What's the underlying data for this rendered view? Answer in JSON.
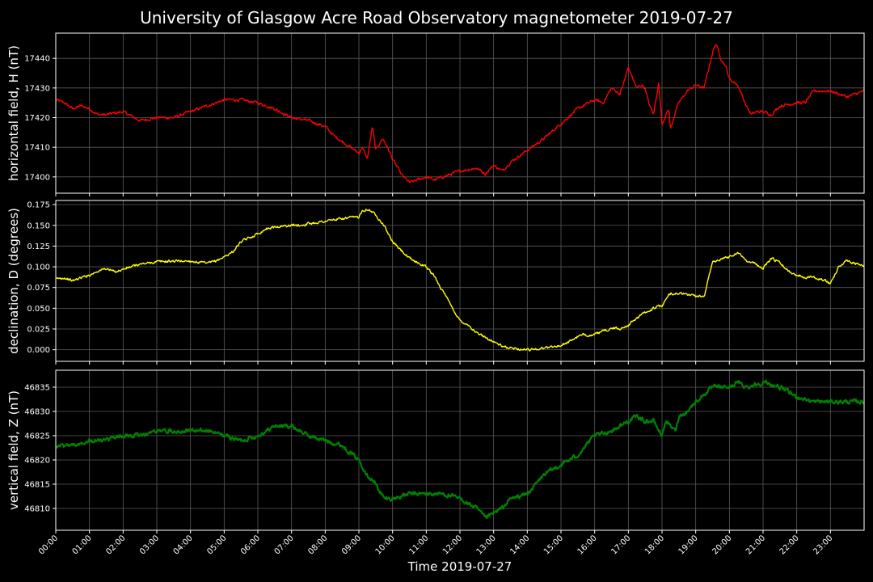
{
  "chart_data": {
    "type": "line",
    "title": "University of Glasgow Acre Road Observatory magnetometer 2019-07-27",
    "xlabel": "Time 2019-07-27",
    "x_ticks": [
      "00:00",
      "01:00",
      "02:00",
      "03:00",
      "04:00",
      "05:00",
      "06:00",
      "07:00",
      "08:00",
      "09:00",
      "10:00",
      "11:00",
      "12:00",
      "13:00",
      "14:00",
      "15:00",
      "16:00",
      "17:00",
      "18:00",
      "19:00",
      "20:00",
      "21:00",
      "22:00",
      "23:00"
    ],
    "xlim": [
      0,
      24
    ],
    "grid": true,
    "panels": [
      {
        "ylabel": "horizontal field, H (nT)",
        "color": "#ff0000",
        "ylim": [
          17394.5,
          17448.5
        ],
        "y_ticks": [
          "17400",
          "17410",
          "17420",
          "17430",
          "17440"
        ],
        "y_tick_values": [
          17400,
          17410,
          17420,
          17430,
          17440
        ],
        "noise": 0.8,
        "series": {
          "x": [
            0,
            0.25,
            0.5,
            0.75,
            1,
            1.25,
            1.5,
            2,
            2.5,
            3,
            3.5,
            4,
            4.5,
            5,
            5.5,
            6,
            6.5,
            7,
            7.5,
            8,
            8.25,
            8.5,
            8.75,
            9,
            9.1,
            9.25,
            9.4,
            9.5,
            9.7,
            9.85,
            10,
            10.25,
            10.5,
            11,
            11.25,
            11.5,
            12,
            12.5,
            12.75,
            13,
            13.25,
            13.5,
            14,
            14.5,
            15,
            15.5,
            16,
            16.25,
            16.5,
            16.75,
            16.9,
            17,
            17.1,
            17.25,
            17.4,
            17.5,
            17.6,
            17.75,
            17.9,
            18,
            18.2,
            18.25,
            18.4,
            18.5,
            18.75,
            19,
            19.25,
            19.5,
            19.6,
            19.75,
            19.9,
            20,
            20.25,
            20.5,
            20.65,
            20.8,
            21,
            21.25,
            21.5,
            22,
            22.25,
            22.5,
            23,
            23.5,
            24
          ],
          "y": [
            17426,
            17425,
            17423,
            17424,
            17423,
            17421,
            17421,
            17422,
            17419,
            17420,
            17420,
            17422,
            17424,
            17426,
            17426,
            17425,
            17423,
            17420,
            17419,
            17417,
            17414,
            17412,
            17410,
            17408,
            17410,
            17406,
            17417,
            17409,
            17413,
            17410,
            17406,
            17401,
            17398,
            17400,
            17399,
            17400,
            17402,
            17403,
            17401,
            17404,
            17402,
            17405,
            17409,
            17413,
            17418,
            17423,
            17426,
            17425,
            17430,
            17428,
            17433,
            17437,
            17434,
            17430,
            17431,
            17430,
            17425,
            17421,
            17432,
            17418,
            17423,
            17416,
            17422,
            17425,
            17429,
            17431,
            17430,
            17442,
            17445,
            17440,
            17437,
            17433,
            17431,
            17424,
            17421,
            17422,
            17422,
            17421,
            17424,
            17425,
            17425,
            17429,
            17429,
            17427,
            17429
          ]
        }
      },
      {
        "ylabel": "declination, D (degrees)",
        "color": "#ffff00",
        "ylim": [
          -0.014,
          0.18
        ],
        "y_ticks": [
          "0.000",
          "0.025",
          "0.050",
          "0.075",
          "0.100",
          "0.125",
          "0.150",
          "0.175"
        ],
        "y_tick_values": [
          0,
          0.025,
          0.05,
          0.075,
          0.1,
          0.125,
          0.15,
          0.175
        ],
        "noise": 0.0025,
        "series": {
          "x": [
            0,
            0.25,
            0.5,
            0.75,
            1,
            1.25,
            1.5,
            1.75,
            2,
            2.5,
            3,
            3.5,
            4,
            4.5,
            4.75,
            5,
            5.25,
            5.5,
            6,
            6.25,
            6.5,
            7,
            7.25,
            7.5,
            8,
            8.5,
            9,
            9.1,
            9.25,
            9.5,
            9.75,
            10,
            10.25,
            10.5,
            11,
            11.25,
            11.5,
            11.75,
            12,
            12.25,
            12.5,
            12.75,
            13,
            13.25,
            13.5,
            14,
            14.5,
            15,
            15.25,
            15.5,
            15.75,
            16,
            16.25,
            16.5,
            16.75,
            17,
            17.25,
            17.5,
            17.75,
            18,
            18.25,
            18.5,
            19,
            19.25,
            19.4,
            19.5,
            19.75,
            20,
            20.25,
            20.5,
            20.75,
            21,
            21.25,
            21.5,
            21.75,
            22,
            22.25,
            22.5,
            22.75,
            23,
            23.25,
            23.5,
            24
          ],
          "y": [
            0.085,
            0.087,
            0.083,
            0.087,
            0.09,
            0.095,
            0.098,
            0.094,
            0.097,
            0.103,
            0.106,
            0.107,
            0.107,
            0.104,
            0.107,
            0.112,
            0.118,
            0.13,
            0.14,
            0.146,
            0.148,
            0.15,
            0.15,
            0.152,
            0.155,
            0.158,
            0.16,
            0.168,
            0.17,
            0.163,
            0.15,
            0.13,
            0.12,
            0.11,
            0.1,
            0.088,
            0.07,
            0.052,
            0.035,
            0.03,
            0.02,
            0.015,
            0.01,
            0.004,
            0.002,
            0.0,
            0.002,
            0.005,
            0.01,
            0.016,
            0.018,
            0.018,
            0.022,
            0.026,
            0.025,
            0.03,
            0.038,
            0.045,
            0.05,
            0.053,
            0.068,
            0.068,
            0.065,
            0.063,
            0.09,
            0.105,
            0.11,
            0.112,
            0.117,
            0.108,
            0.104,
            0.098,
            0.11,
            0.105,
            0.095,
            0.09,
            0.088,
            0.088,
            0.085,
            0.08,
            0.1,
            0.108,
            0.1
          ]
        }
      },
      {
        "ylabel": "vertical field, Z (nT)",
        "color": "#008000",
        "ylim": [
          46805.5,
          46838.5
        ],
        "y_ticks": [
          "46810",
          "46815",
          "46820",
          "46825",
          "46830",
          "46835"
        ],
        "y_tick_values": [
          46810,
          46815,
          46820,
          46825,
          46830,
          46835
        ],
        "noise": 0.7,
        "series": {
          "x": [
            0,
            0.5,
            1,
            1.5,
            2,
            2.5,
            3,
            3.5,
            4,
            4.5,
            5,
            5.5,
            6,
            6.5,
            7,
            7.5,
            8,
            8.5,
            9,
            9.25,
            9.5,
            9.75,
            10,
            10.5,
            11,
            11.5,
            12,
            12.25,
            12.5,
            12.75,
            13,
            13.25,
            13.5,
            14,
            14.5,
            15,
            15.5,
            16,
            16.5,
            17,
            17.25,
            17.5,
            17.75,
            18,
            18.1,
            18.25,
            18.4,
            18.5,
            18.75,
            19,
            19.5,
            20,
            20.25,
            20.5,
            21,
            21.5,
            22,
            22.5,
            23,
            23.5,
            24
          ],
          "y": [
            46823,
            46823,
            46824,
            46824,
            46825,
            46825,
            46826,
            46826,
            46826,
            46826,
            46825,
            46824,
            46825,
            46827,
            46827,
            46825,
            46824,
            46823,
            46820,
            46817,
            46815,
            46812,
            46812,
            46813,
            46813,
            46813,
            46812,
            46811,
            46810,
            46808,
            46809,
            46810,
            46812,
            46813,
            46817,
            46819,
            46821,
            46825,
            46826,
            46828,
            46829,
            46828,
            46828,
            46825,
            46828,
            46827,
            46826,
            46829,
            46830,
            46832,
            46835,
            46835,
            46836,
            46835,
            46836,
            46835,
            46833,
            46832,
            46832,
            46832,
            46832
          ]
        }
      }
    ]
  }
}
